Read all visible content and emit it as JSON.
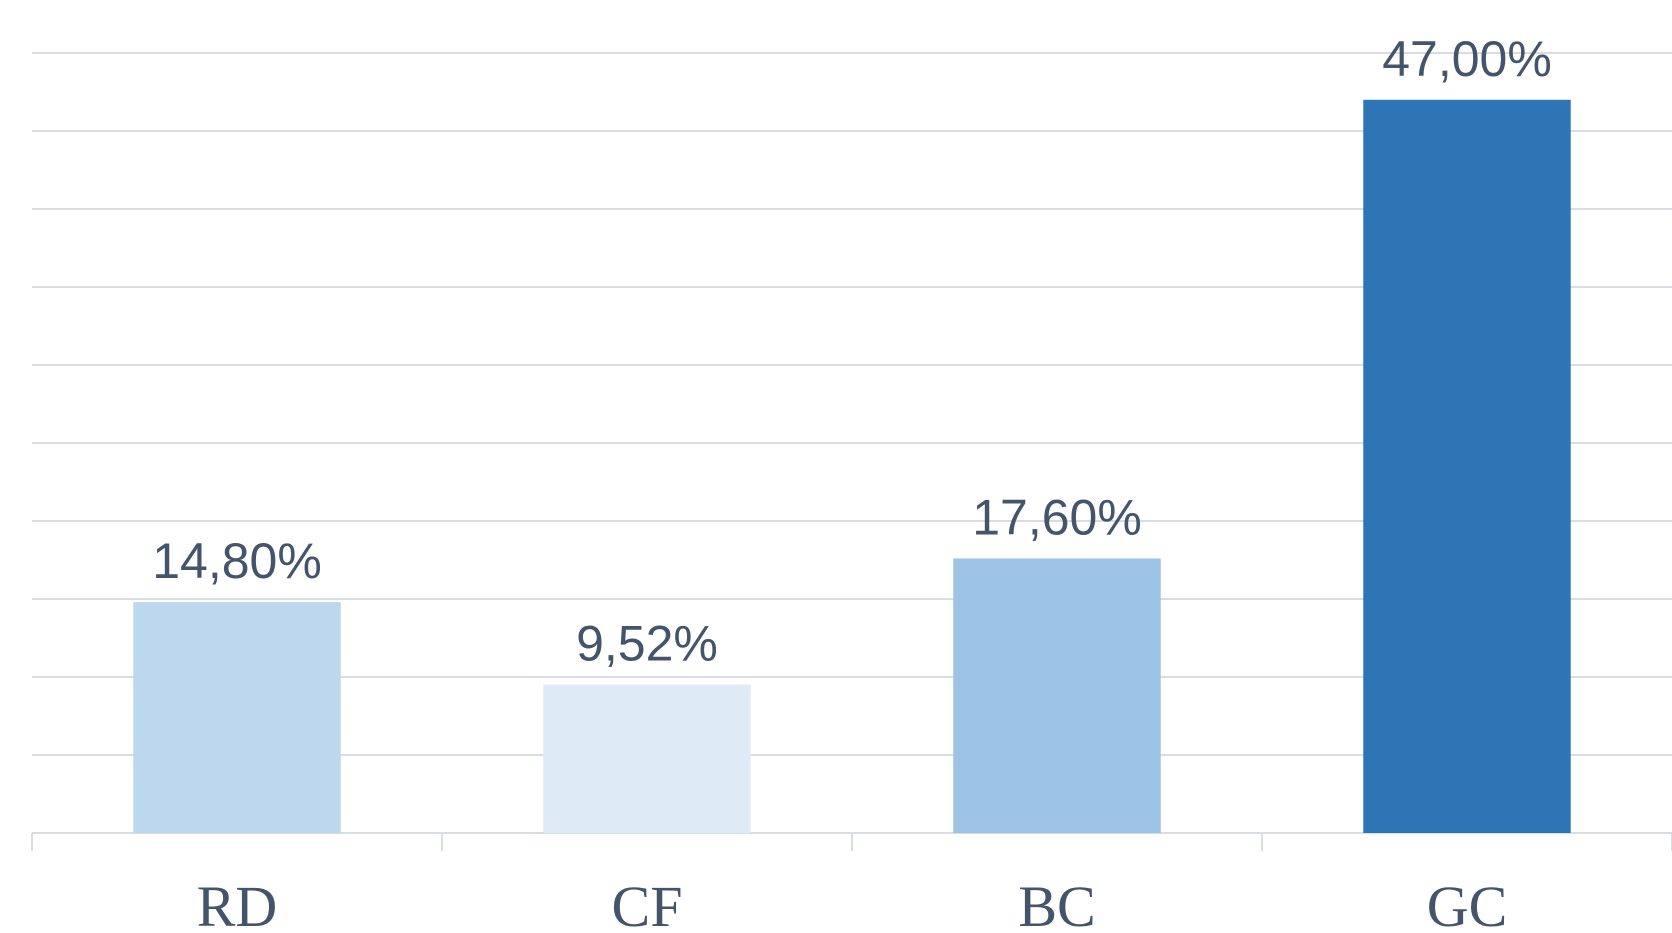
{
  "chart_data": {
    "type": "bar",
    "categories": [
      "RD",
      "CF",
      "BC",
      "GC"
    ],
    "values": [
      14.8,
      9.52,
      17.6,
      47
    ],
    "value_labels": [
      "14,80%",
      "9,52%",
      "17,60%",
      "47,00%"
    ],
    "colors": [
      "#bdd7ee",
      "#deebf7",
      "#9dc3e6",
      "#2e75b6"
    ],
    "ylim": [
      0,
      50
    ],
    "yticks": [
      0,
      5,
      10,
      15,
      20,
      25,
      30,
      35,
      40,
      45,
      50
    ],
    "grid": true
  }
}
